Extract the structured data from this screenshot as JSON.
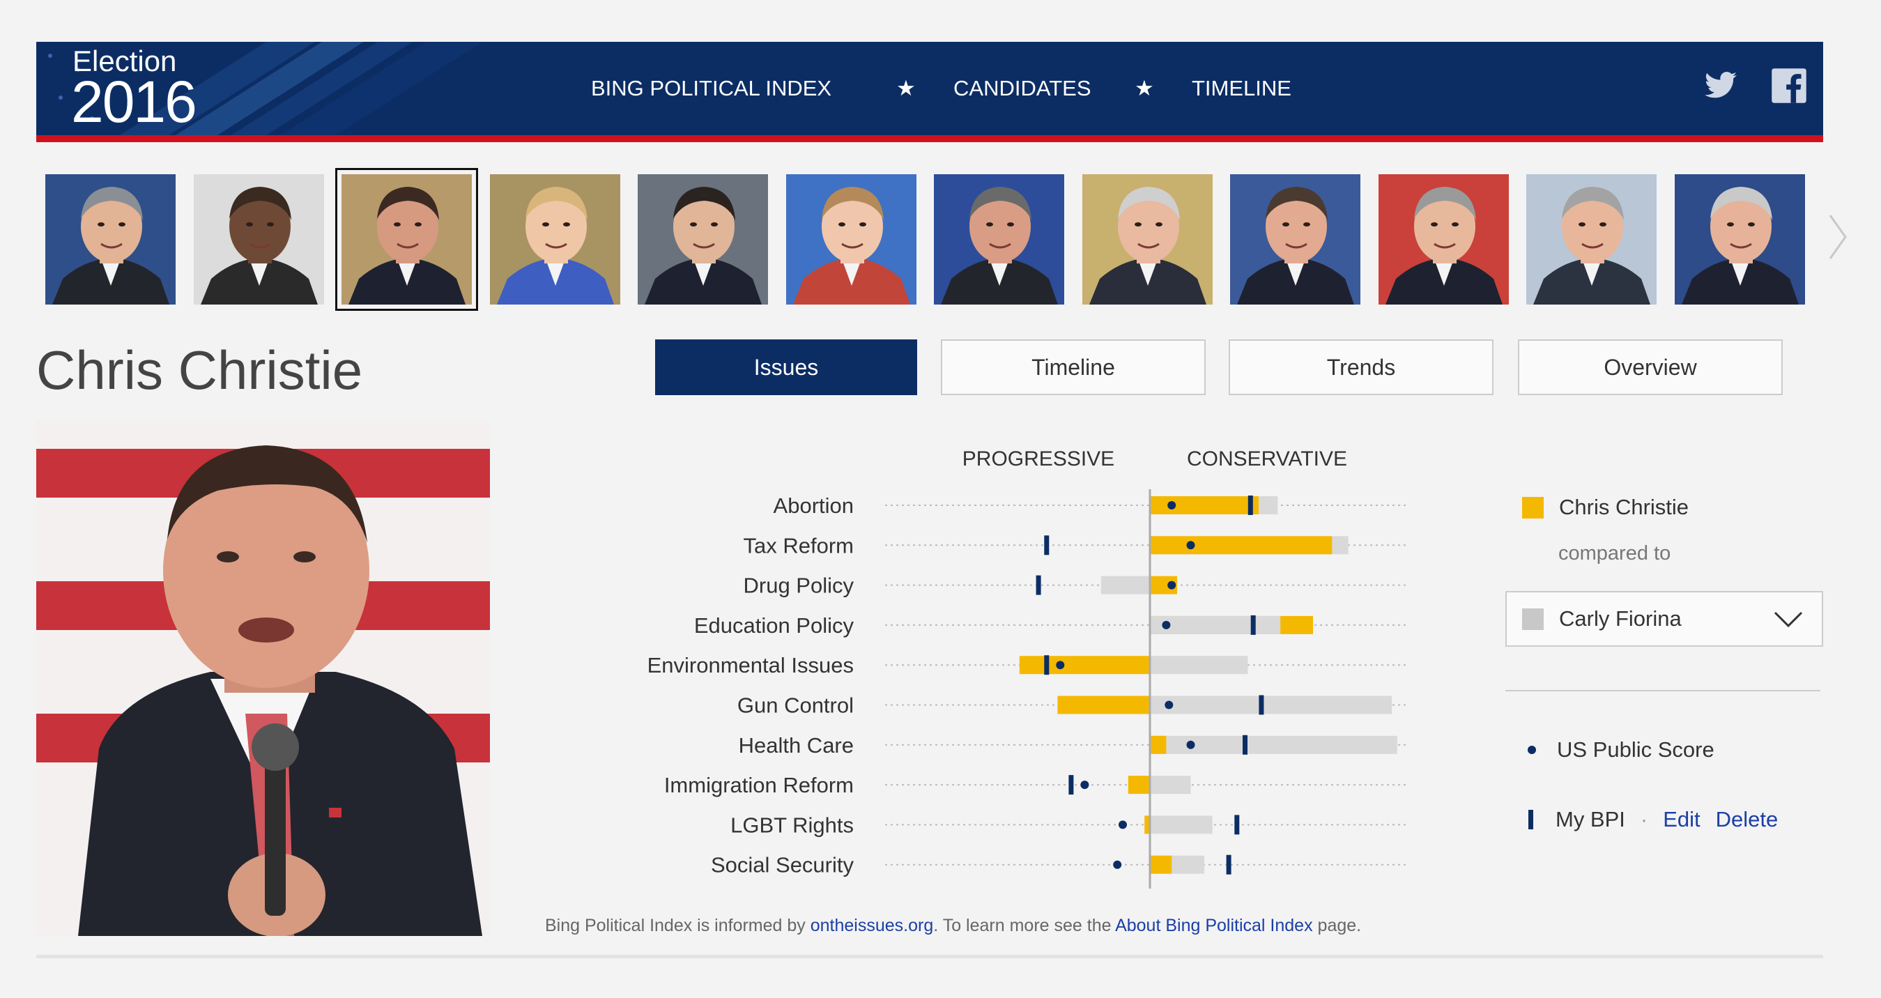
{
  "header": {
    "logo_small": "Election",
    "logo_big": "2016",
    "nav": [
      {
        "label": "BING POLITICAL INDEX",
        "active": false
      },
      {
        "label": "CANDIDATES",
        "active": true
      },
      {
        "label": "TIMELINE",
        "active": false
      }
    ],
    "star": "★",
    "social": [
      "twitter-icon",
      "facebook-icon"
    ]
  },
  "candidates": [
    {
      "bg": "#2f4f8a",
      "skin": "#e2b394",
      "hair": "#8a8f96",
      "suit": "#23252c"
    },
    {
      "bg": "#dcdcdc",
      "skin": "#6e4a36",
      "hair": "#3a2a20",
      "suit": "#2a2a2a"
    },
    {
      "bg": "#b79a6a",
      "skin": "#d69a80",
      "hair": "#3c2a22",
      "suit": "#1e2230",
      "selected": true
    },
    {
      "bg": "#a89462",
      "skin": "#efc6a6",
      "hair": "#d8b57a",
      "suit": "#3f5ec2"
    },
    {
      "bg": "#6a727d",
      "skin": "#e0b598",
      "hair": "#2b2320",
      "suit": "#1e2230"
    },
    {
      "bg": "#3f72c4",
      "skin": "#f0c7ad",
      "hair": "#b58a5a",
      "suit": "#c2453a"
    },
    {
      "bg": "#2d4d9a",
      "skin": "#d99d86",
      "hair": "#6a6a6a",
      "suit": "#23252c"
    },
    {
      "bg": "#c8b06e",
      "skin": "#e9b9a0",
      "hair": "#cfcfcf",
      "suit": "#2a2e3a"
    },
    {
      "bg": "#3b5a9a",
      "skin": "#e2aa90",
      "hair": "#4a3a30",
      "suit": "#1e2230"
    },
    {
      "bg": "#c9413a",
      "skin": "#e8b89c",
      "hair": "#9a9a9a",
      "suit": "#1e2230"
    },
    {
      "bg": "#b8c6d6",
      "skin": "#e8b69b",
      "hair": "#a3a3a3",
      "suit": "#2b3240"
    },
    {
      "bg": "#2e4b8a",
      "skin": "#e6b39a",
      "hair": "#c9c9c9",
      "suit": "#1e2230"
    }
  ],
  "candidate_name": "Chris Christie",
  "tabs": [
    {
      "label": "Issues",
      "active": true
    },
    {
      "label": "Timeline",
      "active": false
    },
    {
      "label": "Trends",
      "active": false
    },
    {
      "label": "Overview",
      "active": false
    }
  ],
  "chart_data": {
    "type": "bar",
    "label_left": "PROGRESSIVE",
    "label_right": "CONSERVATIVE",
    "xlim": [
      -100,
      100
    ],
    "center": 0,
    "categories": [
      "Abortion",
      "Tax Reform",
      "Drug Policy",
      "Education Policy",
      "Environmental Issues",
      "Gun Control",
      "Health Care",
      "Immigration Reform",
      "LGBT Rights",
      "Social Security"
    ],
    "series": [
      {
        "name": "Chris Christie",
        "color": "#f5b800",
        "values": [
          40,
          67,
          10,
          60,
          -48,
          -34,
          6,
          -8,
          -2,
          8
        ]
      },
      {
        "name": "Carly Fiorina",
        "color": "#d9d9d9",
        "values": [
          47,
          73,
          -18,
          48,
          36,
          89,
          91,
          15,
          23,
          20
        ]
      }
    ],
    "us_public_score": [
      8,
      15,
      8,
      6,
      -33,
      7,
      15,
      -24,
      -10,
      -12
    ],
    "my_bpi": [
      37,
      -38,
      -41,
      38,
      -38,
      41,
      35,
      -29,
      32,
      29
    ],
    "markers": {
      "us_public_score_color": "#0c2d64",
      "my_bpi_color": "#0c2d64"
    }
  },
  "legend": {
    "primary": "Chris Christie",
    "compared_to": "compared to",
    "selected_compare": "Carly Fiorina",
    "us_public_score": "US Public Score",
    "my_bpi": "My BPI",
    "separator": "·",
    "edit": "Edit",
    "delete": "Delete"
  },
  "footnote": {
    "prefix": "Bing Political Index is informed by ",
    "link1": "ontheissues.org",
    "middle": ". To learn more see the ",
    "link2": "About Bing Political Index",
    "suffix": " page."
  },
  "colors": {
    "navy": "#0c2d64",
    "red": "#d1121e",
    "gold": "#f5b800",
    "gray_bar": "#d9d9d9"
  }
}
